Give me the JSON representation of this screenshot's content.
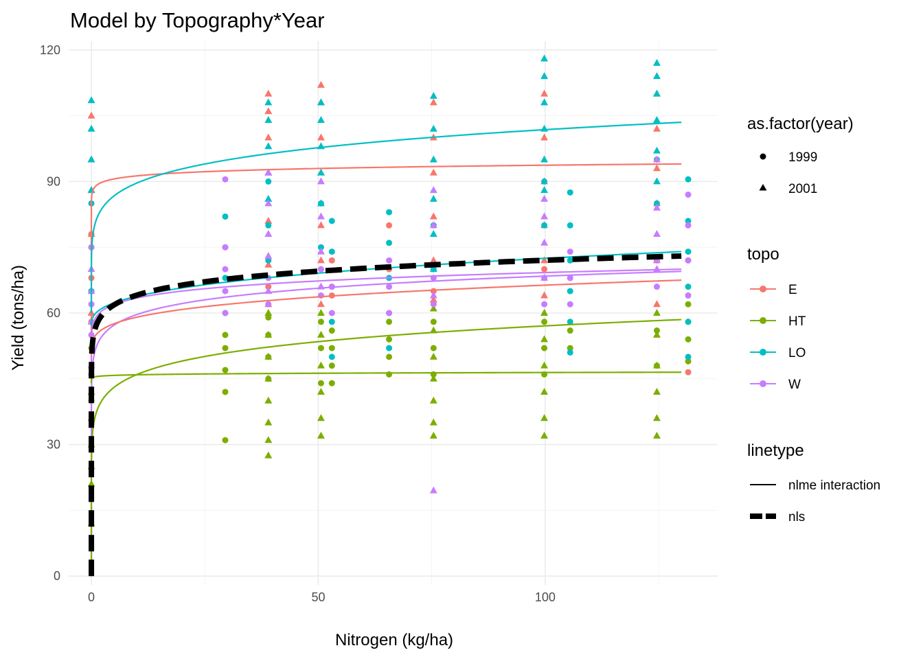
{
  "chart_data": {
    "type": "scatter",
    "title": "Model by Topography*Year",
    "xlabel": "Nitrogen (kg/ha)",
    "ylabel": "Yield (tons/ha)",
    "xlim": [
      -5,
      138
    ],
    "ylim": [
      -2,
      122
    ],
    "x_ticks": [
      0,
      50,
      100
    ],
    "y_ticks": [
      0,
      30,
      60,
      90,
      120
    ],
    "grid": true,
    "legend_position": "right",
    "x_levels": [
      0,
      29.5,
      39,
      50.6,
      53,
      65.6,
      75.4,
      99.8,
      105.5,
      124.6,
      131.5
    ],
    "topo_colors": {
      "E": "#F8766D",
      "HT": "#7CAE00",
      "LO": "#00BFC4",
      "W": "#C77CFF"
    },
    "scatter_groups": [
      {
        "topo": "E",
        "year": "1999",
        "color": "#F8766D",
        "points": [
          [
            0,
            58
          ],
          [
            0,
            68
          ],
          [
            0,
            78
          ],
          [
            39,
            66
          ],
          [
            39,
            72
          ],
          [
            50.6,
            70
          ],
          [
            53,
            64
          ],
          [
            53,
            72
          ],
          [
            65.6,
            70
          ],
          [
            65.6,
            80
          ],
          [
            75.4,
            65
          ],
          [
            99.8,
            70
          ],
          [
            105.5,
            68
          ],
          [
            124.6,
            72
          ],
          [
            131.5,
            46.5
          ],
          [
            131.5,
            64
          ],
          [
            131.5,
            72
          ]
        ]
      },
      {
        "topo": "E",
        "year": "2001",
        "color": "#F8766D",
        "points": [
          [
            0,
            60
          ],
          [
            0,
            78
          ],
          [
            0,
            88
          ],
          [
            0,
            95
          ],
          [
            0,
            105
          ],
          [
            39,
            62
          ],
          [
            39,
            71
          ],
          [
            39,
            81
          ],
          [
            39,
            92
          ],
          [
            39,
            100
          ],
          [
            39,
            106
          ],
          [
            39,
            110
          ],
          [
            50.6,
            62
          ],
          [
            50.6,
            72
          ],
          [
            50.6,
            80
          ],
          [
            50.6,
            92
          ],
          [
            50.6,
            100
          ],
          [
            50.6,
            108
          ],
          [
            50.6,
            112
          ],
          [
            75.4,
            63
          ],
          [
            75.4,
            72
          ],
          [
            75.4,
            82
          ],
          [
            75.4,
            92
          ],
          [
            75.4,
            100
          ],
          [
            75.4,
            108
          ],
          [
            99.8,
            60
          ],
          [
            99.8,
            64
          ],
          [
            99.8,
            72
          ],
          [
            99.8,
            80
          ],
          [
            99.8,
            90
          ],
          [
            99.8,
            100
          ],
          [
            99.8,
            110
          ],
          [
            124.6,
            62
          ],
          [
            124.6,
            72
          ],
          [
            124.6,
            85
          ],
          [
            124.6,
            93
          ],
          [
            124.6,
            102
          ],
          [
            124.6,
            110
          ]
        ]
      },
      {
        "topo": "HT",
        "year": "1999",
        "color": "#7CAE00",
        "points": [
          [
            0,
            40
          ],
          [
            0,
            46
          ],
          [
            0,
            52
          ],
          [
            29.5,
            31
          ],
          [
            29.5,
            42
          ],
          [
            29.5,
            47
          ],
          [
            29.5,
            52
          ],
          [
            29.5,
            55
          ],
          [
            39,
            45
          ],
          [
            39,
            50
          ],
          [
            39,
            55
          ],
          [
            39,
            59
          ],
          [
            50.6,
            44
          ],
          [
            50.6,
            52
          ],
          [
            50.6,
            58
          ],
          [
            53,
            44
          ],
          [
            53,
            48
          ],
          [
            53,
            52
          ],
          [
            53,
            56
          ],
          [
            65.6,
            46
          ],
          [
            65.6,
            50
          ],
          [
            65.6,
            54
          ],
          [
            65.6,
            58
          ],
          [
            75.4,
            46
          ],
          [
            75.4,
            52
          ],
          [
            75.4,
            58
          ],
          [
            99.8,
            46
          ],
          [
            99.8,
            52
          ],
          [
            99.8,
            58
          ],
          [
            105.5,
            52
          ],
          [
            105.5,
            56
          ],
          [
            124.6,
            48
          ],
          [
            124.6,
            56
          ],
          [
            131.5,
            49
          ],
          [
            131.5,
            54
          ],
          [
            131.5,
            58
          ],
          [
            131.5,
            62
          ]
        ]
      },
      {
        "topo": "HT",
        "year": "2001",
        "color": "#7CAE00",
        "points": [
          [
            0,
            12
          ],
          [
            0,
            21
          ],
          [
            0,
            25
          ],
          [
            0,
            30
          ],
          [
            0,
            36
          ],
          [
            0,
            42
          ],
          [
            39,
            27.5
          ],
          [
            39,
            31
          ],
          [
            39,
            35
          ],
          [
            39,
            40
          ],
          [
            39,
            45
          ],
          [
            39,
            50
          ],
          [
            39,
            55
          ],
          [
            39,
            60
          ],
          [
            50.6,
            32
          ],
          [
            50.6,
            36
          ],
          [
            50.6,
            42
          ],
          [
            50.6,
            48
          ],
          [
            50.6,
            55
          ],
          [
            50.6,
            60
          ],
          [
            75.4,
            32
          ],
          [
            75.4,
            35
          ],
          [
            75.4,
            40
          ],
          [
            75.4,
            45
          ],
          [
            75.4,
            50
          ],
          [
            75.4,
            56
          ],
          [
            75.4,
            61
          ],
          [
            99.8,
            32
          ],
          [
            99.8,
            36
          ],
          [
            99.8,
            42
          ],
          [
            99.8,
            48
          ],
          [
            99.8,
            54
          ],
          [
            99.8,
            60
          ],
          [
            124.6,
            32
          ],
          [
            124.6,
            36
          ],
          [
            124.6,
            42
          ],
          [
            124.6,
            48
          ],
          [
            124.6,
            55
          ],
          [
            124.6,
            60
          ]
        ]
      },
      {
        "topo": "LO",
        "year": "1999",
        "color": "#00BFC4",
        "points": [
          [
            0,
            65
          ],
          [
            0,
            75
          ],
          [
            0,
            85
          ],
          [
            29.5,
            60
          ],
          [
            29.5,
            68
          ],
          [
            29.5,
            75
          ],
          [
            29.5,
            82
          ],
          [
            39,
            72
          ],
          [
            39,
            80
          ],
          [
            39,
            90
          ],
          [
            50.6,
            75
          ],
          [
            50.6,
            85
          ],
          [
            53,
            50
          ],
          [
            53,
            58
          ],
          [
            53,
            66
          ],
          [
            53,
            74
          ],
          [
            53,
            81
          ],
          [
            65.6,
            52
          ],
          [
            65.6,
            60
          ],
          [
            65.6,
            68
          ],
          [
            65.6,
            76
          ],
          [
            65.6,
            83
          ],
          [
            75.4,
            70
          ],
          [
            75.4,
            80
          ],
          [
            99.8,
            80
          ],
          [
            99.8,
            90
          ],
          [
            105.5,
            51
          ],
          [
            105.5,
            58
          ],
          [
            105.5,
            65
          ],
          [
            105.5,
            72
          ],
          [
            105.5,
            80
          ],
          [
            105.5,
            87.5
          ],
          [
            124.6,
            85
          ],
          [
            124.6,
            95
          ],
          [
            131.5,
            50
          ],
          [
            131.5,
            58
          ],
          [
            131.5,
            66
          ],
          [
            131.5,
            74
          ],
          [
            131.5,
            81
          ],
          [
            131.5,
            90.5
          ]
        ]
      },
      {
        "topo": "LO",
        "year": "2001",
        "color": "#00BFC4",
        "points": [
          [
            0,
            88
          ],
          [
            0,
            95
          ],
          [
            0,
            102
          ],
          [
            0,
            108.5
          ],
          [
            39,
            86
          ],
          [
            39,
            92
          ],
          [
            39,
            98
          ],
          [
            39,
            104
          ],
          [
            39,
            108
          ],
          [
            50.6,
            85
          ],
          [
            50.6,
            92
          ],
          [
            50.6,
            98
          ],
          [
            50.6,
            104
          ],
          [
            50.6,
            108
          ],
          [
            75.4,
            70
          ],
          [
            75.4,
            78
          ],
          [
            75.4,
            86
          ],
          [
            75.4,
            95
          ],
          [
            75.4,
            102
          ],
          [
            75.4,
            109.5
          ],
          [
            99.8,
            88
          ],
          [
            99.8,
            95
          ],
          [
            99.8,
            102
          ],
          [
            99.8,
            108
          ],
          [
            99.8,
            114
          ],
          [
            99.8,
            118
          ],
          [
            124.6,
            90
          ],
          [
            124.6,
            97
          ],
          [
            124.6,
            104
          ],
          [
            124.6,
            110
          ],
          [
            124.6,
            114
          ],
          [
            124.6,
            117
          ]
        ]
      },
      {
        "topo": "W",
        "year": "1999",
        "color": "#C77CFF",
        "points": [
          [
            0,
            46
          ],
          [
            0,
            55
          ],
          [
            0,
            62
          ],
          [
            0,
            75
          ],
          [
            29.5,
            60
          ],
          [
            29.5,
            65
          ],
          [
            29.5,
            70
          ],
          [
            29.5,
            75
          ],
          [
            29.5,
            90.5
          ],
          [
            39,
            62
          ],
          [
            39,
            68
          ],
          [
            50.6,
            64
          ],
          [
            50.6,
            70
          ],
          [
            53,
            60
          ],
          [
            53,
            66
          ],
          [
            65.6,
            60
          ],
          [
            65.6,
            66
          ],
          [
            65.6,
            72
          ],
          [
            75.4,
            62
          ],
          [
            75.4,
            68
          ],
          [
            99.8,
            62
          ],
          [
            99.8,
            68
          ],
          [
            105.5,
            62
          ],
          [
            105.5,
            68
          ],
          [
            105.5,
            74
          ],
          [
            124.6,
            66
          ],
          [
            124.6,
            72
          ],
          [
            131.5,
            64
          ],
          [
            131.5,
            72
          ],
          [
            131.5,
            80
          ],
          [
            131.5,
            87
          ]
        ]
      },
      {
        "topo": "W",
        "year": "2001",
        "color": "#C77CFF",
        "points": [
          [
            0,
            48
          ],
          [
            0,
            58
          ],
          [
            0,
            65
          ],
          [
            0,
            70
          ],
          [
            39,
            65
          ],
          [
            39,
            73
          ],
          [
            39,
            78
          ],
          [
            39,
            85
          ],
          [
            39,
            92
          ],
          [
            50.6,
            66
          ],
          [
            50.6,
            74
          ],
          [
            50.6,
            82
          ],
          [
            50.6,
            90
          ],
          [
            75.4,
            19.5
          ],
          [
            75.4,
            64
          ],
          [
            75.4,
            71
          ],
          [
            75.4,
            80
          ],
          [
            75.4,
            88
          ],
          [
            99.8,
            68
          ],
          [
            99.8,
            76
          ],
          [
            99.8,
            82
          ],
          [
            99.8,
            86
          ],
          [
            124.6,
            70
          ],
          [
            124.6,
            78
          ],
          [
            124.6,
            84
          ],
          [
            124.6,
            95
          ]
        ]
      }
    ],
    "curves": [
      {
        "name": "E-2001",
        "color": "#F8766D",
        "y_at_0": 54,
        "y_at_1": 89,
        "y_at_130": 94
      },
      {
        "name": "LO-2001",
        "color": "#00BFC4",
        "y_at_0": 60,
        "y_at_1": 81,
        "y_at_130": 103.5
      },
      {
        "name": "LO-1999",
        "color": "#00BFC4",
        "y_at_0": 57,
        "y_at_1": 60,
        "y_at_130": 74
      },
      {
        "name": "W-1999",
        "color": "#C77CFF",
        "y_at_0": 45,
        "y_at_1": 59,
        "y_at_130": 70
      },
      {
        "name": "W-2001",
        "color": "#C77CFF",
        "y_at_0": 0,
        "y_at_1": 52,
        "y_at_130": 69.5
      },
      {
        "name": "E-1999",
        "color": "#F8766D",
        "y_at_0": 50,
        "y_at_1": 55,
        "y_at_130": 67.5
      },
      {
        "name": "HT-1999",
        "color": "#7CAE00",
        "y_at_0": 44,
        "y_at_1": 45.5,
        "y_at_130": 46.5
      },
      {
        "name": "HT-2001",
        "color": "#7CAE00",
        "y_at_0": 0,
        "y_at_1": 37,
        "y_at_130": 58.5
      }
    ],
    "nls_curve": {
      "y_at_0": 0,
      "y_at_1": 57,
      "y_at_130": 73
    },
    "legends": {
      "year": {
        "title": "as.factor(year)",
        "items": [
          {
            "label": "1999",
            "shape": "circle"
          },
          {
            "label": "2001",
            "shape": "triangle"
          }
        ]
      },
      "topo": {
        "title": "topo",
        "items": [
          {
            "label": "E",
            "color": "#F8766D"
          },
          {
            "label": "HT",
            "color": "#7CAE00"
          },
          {
            "label": "LO",
            "color": "#00BFC4"
          },
          {
            "label": "W",
            "color": "#C77CFF"
          }
        ]
      },
      "linetype": {
        "title": "linetype",
        "items": [
          {
            "label": "nlme interaction",
            "style": "solid"
          },
          {
            "label": "nls",
            "style": "dashed"
          }
        ]
      }
    }
  }
}
